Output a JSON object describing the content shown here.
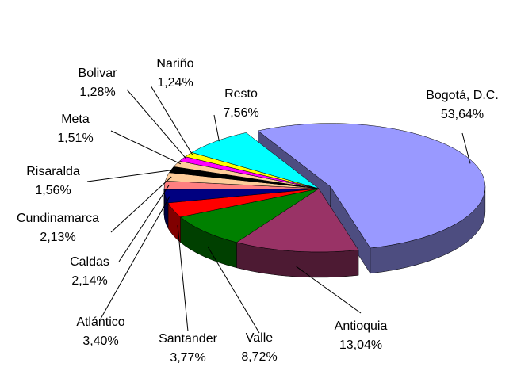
{
  "chart_data": {
    "type": "pie",
    "categories": [
      "Bogotá, D.C.",
      "Antioquia",
      "Valle",
      "Santander",
      "Atlántico",
      "Caldas",
      "Cundinamarca",
      "Risaralda",
      "Meta",
      "Bolivar",
      "Nariño",
      "Resto"
    ],
    "values": [
      53.64,
      13.04,
      8.72,
      3.77,
      3.4,
      2.14,
      2.13,
      1.56,
      1.51,
      1.28,
      1.24,
      7.56
    ],
    "value_labels": [
      "53,64%",
      "13,04%",
      "8,72%",
      "3,77%",
      "3,40%",
      "2,14%",
      "2,13%",
      "1,56%",
      "1,51%",
      "1,28%",
      "1,24%",
      "7,56%"
    ],
    "colors": [
      "#9999ff",
      "#993366",
      "#008000",
      "#ff0000",
      "#000080",
      "#ff8080",
      "#ffcc99",
      "#000000",
      "#ffcc99",
      "#ff00ff",
      "#ffff00",
      "#00ffff"
    ],
    "exploded": [
      "Bogotá, D.C."
    ]
  }
}
